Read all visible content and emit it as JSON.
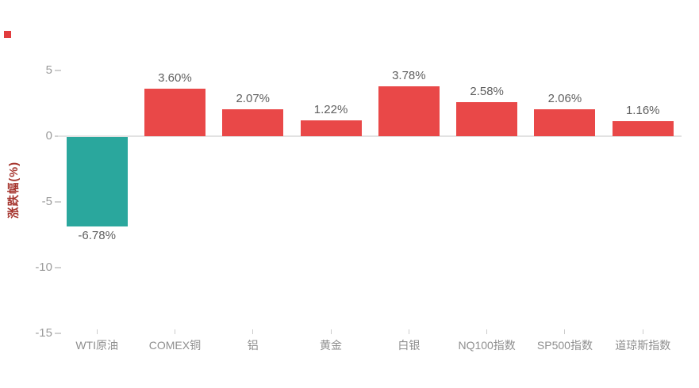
{
  "page": {
    "background": "#ffffff"
  },
  "marker": {
    "color": "#e13c3e"
  },
  "chart_data": {
    "type": "bar",
    "title": "",
    "ylabel": "涨跌幅(%)",
    "ylabel_color": "#a5342d",
    "categories": [
      "WTI原油",
      "COMEX铜",
      "铝",
      "黄金",
      "白银",
      "NQ100指数",
      "SP500指数",
      "道琼斯指数"
    ],
    "values": [
      -6.78,
      3.6,
      2.07,
      1.22,
      3.78,
      2.58,
      2.06,
      1.16
    ],
    "data_labels": [
      "-6.78%",
      "3.60%",
      "2.07%",
      "1.22%",
      "3.78%",
      "2.58%",
      "2.06%",
      "1.16%"
    ],
    "bar_colors": [
      "#2aa79d",
      "#e94848",
      "#e94848",
      "#e94848",
      "#e94848",
      "#e94848",
      "#e94848",
      "#e94848"
    ],
    "positive_color": "#e94848",
    "negative_color": "#2aa79d",
    "yticks": [
      5,
      0,
      -5,
      -10,
      -15
    ],
    "ytick_labels": [
      "5",
      "0",
      "-5",
      "-10",
      "-15"
    ],
    "ylim": [
      -15,
      6.5
    ],
    "grid": false,
    "legend": false,
    "value_label_color": "#5f5f5f",
    "tick_label_color": "#9b9b9b",
    "axis_line_color": "#e2e2e2"
  }
}
